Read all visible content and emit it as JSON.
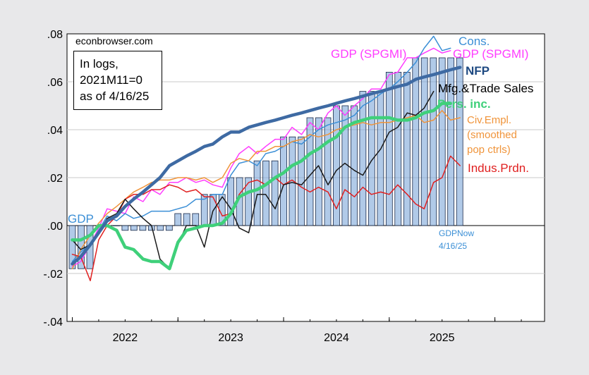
{
  "source": "econbrowser.com",
  "note": [
    "In logs,",
    "2021M11=0",
    "as of 4/16/25"
  ],
  "chart_data": {
    "type": "line",
    "yticks": [
      ".08",
      ".06",
      ".04",
      ".02",
      ".00",
      "-.02",
      "-.04"
    ],
    "ylim": [
      -0.04,
      0.08
    ],
    "xlim": [
      2021.45,
      2025.97
    ],
    "xticks": [
      "2022",
      "2023",
      "2024",
      "2025"
    ],
    "grid": true,
    "colors": {
      "gdp": "#7da7d9",
      "cons": "#3b8fd6",
      "gdp_spgmi": "#ff3cff",
      "nfp": "#3e6aa3",
      "mfg": "#1a1a1a",
      "pers": "#3fd07a",
      "civ": "#f0943a",
      "ip": "#e02020"
    },
    "series_labels": {
      "gdp": "GDP",
      "cons": "Cons.",
      "gdp_spgmi_left": "GDP (SPGMI)",
      "gdp_spgmi_right": "GDP (SPGMI)",
      "nfp": "NFP",
      "mfg": "Mfg.&Trade Sales",
      "pers": "Pers. inc.",
      "civ": [
        "Civ.Empl.",
        "(smoothed",
        "pop ctrls)"
      ],
      "ip": "Indus.Prdn.",
      "gdpnow": [
        "GDPNow",
        "4/16/25"
      ]
    },
    "gdp_bars": {
      "x": [
        2021.5,
        2021.583,
        2021.667,
        2021.75,
        2021.833,
        2021.917,
        2022.0,
        2022.083,
        2022.167,
        2022.25,
        2022.333,
        2022.417,
        2022.5,
        2022.583,
        2022.667,
        2022.75,
        2022.833,
        2022.917,
        2023.0,
        2023.083,
        2023.167,
        2023.25,
        2023.333,
        2023.417,
        2023.5,
        2023.583,
        2023.667,
        2023.75,
        2023.833,
        2023.917,
        2024.0,
        2024.083,
        2024.167,
        2024.25,
        2024.333,
        2024.417,
        2024.5,
        2024.583,
        2024.667,
        2024.75,
        2024.833,
        2024.917,
        2025.0,
        2025.083,
        2025.167
      ],
      "values": [
        -0.018,
        -0.018,
        -0.018,
        0.0,
        0.0,
        0.0,
        -0.002,
        -0.002,
        -0.002,
        -0.002,
        -0.002,
        -0.002,
        0.005,
        0.005,
        0.005,
        0.013,
        0.013,
        0.013,
        0.02,
        0.02,
        0.02,
        0.027,
        0.027,
        0.027,
        0.037,
        0.037,
        0.037,
        0.045,
        0.045,
        0.045,
        0.05,
        0.05,
        0.05,
        0.056,
        0.056,
        0.056,
        0.064,
        0.064,
        0.064,
        0.07,
        0.07,
        0.07,
        0.07,
        0.07,
        0.07
      ]
    },
    "series": [
      {
        "key": "gdp_spgmi",
        "width": 1.5,
        "x": [
          2021.5,
          2021.58,
          2021.67,
          2021.75,
          2021.83,
          2021.92,
          2022.0,
          2022.08,
          2022.17,
          2022.25,
          2022.33,
          2022.42,
          2022.5,
          2022.58,
          2022.67,
          2022.75,
          2022.83,
          2022.92,
          2023.0,
          2023.08,
          2023.17,
          2023.25,
          2023.33,
          2023.42,
          2023.5,
          2023.58,
          2023.67,
          2023.75,
          2023.83,
          2023.92,
          2024.0,
          2024.08,
          2024.17,
          2024.25,
          2024.33,
          2024.42,
          2024.5,
          2024.58,
          2024.67,
          2024.75,
          2024.83,
          2024.92,
          2025.0,
          2025.08
        ],
        "y": [
          -0.017,
          -0.015,
          -0.008,
          -0.001,
          0.007,
          0.006,
          0.005,
          0.012,
          0.01,
          0.015,
          0.013,
          0.018,
          0.018,
          0.02,
          0.018,
          0.019,
          0.017,
          0.016,
          0.024,
          0.03,
          0.033,
          0.03,
          0.033,
          0.036,
          0.036,
          0.041,
          0.038,
          0.043,
          0.04,
          0.047,
          0.05,
          0.046,
          0.05,
          0.053,
          0.057,
          0.057,
          0.063,
          0.064,
          0.07,
          0.07,
          0.072,
          0.074,
          0.072,
          0.073
        ]
      },
      {
        "key": "cons",
        "width": 1.5,
        "x": [
          2021.5,
          2021.58,
          2021.67,
          2021.75,
          2021.83,
          2021.92,
          2022.0,
          2022.08,
          2022.17,
          2022.25,
          2022.33,
          2022.42,
          2022.5,
          2022.58,
          2022.67,
          2022.75,
          2022.83,
          2022.92,
          2023.0,
          2023.08,
          2023.17,
          2023.25,
          2023.33,
          2023.42,
          2023.5,
          2023.58,
          2023.67,
          2023.75,
          2023.83,
          2023.92,
          2024.0,
          2024.08,
          2024.17,
          2024.25,
          2024.33,
          2024.42,
          2024.5,
          2024.58,
          2024.67,
          2024.75,
          2024.83,
          2024.92,
          2025.0,
          2025.08
        ],
        "y": [
          -0.015,
          -0.011,
          -0.008,
          -0.002,
          0.004,
          0.002,
          0.005,
          0.003,
          0.004,
          0.006,
          0.006,
          0.006,
          0.007,
          0.008,
          0.011,
          0.011,
          0.013,
          0.013,
          0.021,
          0.026,
          0.027,
          0.025,
          0.03,
          0.031,
          0.033,
          0.035,
          0.034,
          0.037,
          0.04,
          0.042,
          0.043,
          0.044,
          0.046,
          0.05,
          0.052,
          0.055,
          0.057,
          0.06,
          0.064,
          0.068,
          0.074,
          0.079,
          0.073,
          0.074
        ]
      },
      {
        "key": "civ",
        "width": 1.5,
        "x": [
          2021.5,
          2021.58,
          2021.67,
          2021.75,
          2021.83,
          2021.92,
          2022.0,
          2022.08,
          2022.17,
          2022.25,
          2022.33,
          2022.42,
          2022.5,
          2022.58,
          2022.67,
          2022.75,
          2022.83,
          2022.92,
          2023.0,
          2023.08,
          2023.17,
          2023.25,
          2023.33,
          2023.42,
          2023.5,
          2023.58,
          2023.67,
          2023.75,
          2023.83,
          2023.92,
          2024.0,
          2024.08,
          2024.17,
          2024.25,
          2024.33,
          2024.42,
          2024.5,
          2024.58,
          2024.67,
          2024.75,
          2024.83,
          2024.92,
          2025.0,
          2025.08,
          2025.17
        ],
        "y": [
          -0.018,
          -0.01,
          -0.004,
          0.001,
          0.005,
          0.008,
          0.011,
          0.014,
          0.016,
          0.018,
          0.019,
          0.019,
          0.02,
          0.02,
          0.019,
          0.02,
          0.018,
          0.02,
          0.026,
          0.028,
          0.027,
          0.031,
          0.031,
          0.033,
          0.033,
          0.035,
          0.036,
          0.038,
          0.037,
          0.038,
          0.04,
          0.041,
          0.042,
          0.043,
          0.042,
          0.043,
          0.043,
          0.044,
          0.045,
          0.046,
          0.043,
          0.044,
          0.048,
          0.044,
          0.045
        ]
      },
      {
        "key": "ip",
        "width": 1.5,
        "x": [
          2021.5,
          2021.58,
          2021.67,
          2021.75,
          2021.83,
          2021.92,
          2022.0,
          2022.08,
          2022.17,
          2022.25,
          2022.33,
          2022.42,
          2022.5,
          2022.58,
          2022.67,
          2022.75,
          2022.83,
          2022.92,
          2023.0,
          2023.08,
          2023.17,
          2023.25,
          2023.33,
          2023.42,
          2023.5,
          2023.58,
          2023.67,
          2023.75,
          2023.83,
          2023.92,
          2024.0,
          2024.08,
          2024.17,
          2024.25,
          2024.33,
          2024.42,
          2024.5,
          2024.58,
          2024.67,
          2024.75,
          2024.83,
          2024.92,
          2025.0,
          2025.08,
          2025.17
        ],
        "y": [
          -0.012,
          -0.013,
          -0.023,
          -0.006,
          0.0,
          0.004,
          0.011,
          0.013,
          0.013,
          0.015,
          0.015,
          0.017,
          0.016,
          0.014,
          0.015,
          0.012,
          0.012,
          0.004,
          0.005,
          0.013,
          0.018,
          0.019,
          0.017,
          0.02,
          0.017,
          0.019,
          0.016,
          0.014,
          0.016,
          0.014,
          0.007,
          0.015,
          0.012,
          0.016,
          0.013,
          0.014,
          0.013,
          0.017,
          0.013,
          0.009,
          0.007,
          0.018,
          0.02,
          0.029,
          0.025
        ]
      },
      {
        "key": "mfg",
        "width": 1.5,
        "x": [
          2021.5,
          2021.58,
          2021.67,
          2021.75,
          2021.83,
          2021.92,
          2022.0,
          2022.08,
          2022.17,
          2022.25,
          2022.33,
          2022.42,
          2022.5,
          2022.58,
          2022.67,
          2022.75,
          2022.83,
          2022.92,
          2023.0,
          2023.08,
          2023.17,
          2023.25,
          2023.33,
          2023.42,
          2023.5,
          2023.58,
          2023.67,
          2023.75,
          2023.83,
          2023.92,
          2024.0,
          2024.08,
          2024.17,
          2024.25,
          2024.33,
          2024.42,
          2024.5,
          2024.58,
          2024.67,
          2024.75,
          2024.83,
          2024.92
        ],
        "y": [
          -0.006,
          -0.01,
          -0.008,
          -0.003,
          0.003,
          0.005,
          0.011,
          0.007,
          0.003,
          0.0,
          -0.014,
          -0.018,
          -0.008,
          0.0,
          0.0,
          -0.009,
          0.006,
          0.012,
          0.007,
          -0.001,
          -0.003,
          0.013,
          0.013,
          0.007,
          0.017,
          0.018,
          0.017,
          0.021,
          0.025,
          0.017,
          0.023,
          0.026,
          0.023,
          0.021,
          0.027,
          0.032,
          0.039,
          0.041,
          0.047,
          0.046,
          0.049,
          0.056
        ]
      },
      {
        "key": "pers",
        "width": 4.5,
        "x": [
          2021.5,
          2021.58,
          2021.67,
          2021.75,
          2021.83,
          2021.92,
          2022.0,
          2022.08,
          2022.17,
          2022.25,
          2022.33,
          2022.42,
          2022.5,
          2022.58,
          2022.67,
          2022.75,
          2022.83,
          2022.92,
          2023.0,
          2023.08,
          2023.17,
          2023.25,
          2023.33,
          2023.42,
          2023.5,
          2023.58,
          2023.67,
          2023.75,
          2023.83,
          2023.92,
          2024.0,
          2024.08,
          2024.17,
          2024.25,
          2024.33,
          2024.42,
          2024.5,
          2024.58,
          2024.67,
          2024.75,
          2024.83,
          2024.92,
          2025.0,
          2025.08
        ],
        "y": [
          -0.006,
          -0.006,
          -0.004,
          0.0,
          0.0,
          -0.002,
          -0.009,
          -0.01,
          -0.014,
          -0.015,
          -0.015,
          -0.018,
          -0.007,
          -0.002,
          -0.001,
          0.0,
          0.0,
          0.001,
          0.005,
          0.012,
          0.014,
          0.015,
          0.017,
          0.02,
          0.022,
          0.025,
          0.027,
          0.03,
          0.032,
          0.035,
          0.037,
          0.041,
          0.043,
          0.044,
          0.045,
          0.045,
          0.045,
          0.044,
          0.044,
          0.045,
          0.047,
          0.048,
          0.051,
          0.051
        ]
      },
      {
        "key": "nfp",
        "width": 4.5,
        "x": [
          2021.5,
          2021.58,
          2021.67,
          2021.75,
          2021.83,
          2021.92,
          2022.0,
          2022.08,
          2022.17,
          2022.25,
          2022.33,
          2022.42,
          2022.5,
          2022.58,
          2022.67,
          2022.75,
          2022.83,
          2022.92,
          2023.0,
          2023.08,
          2023.17,
          2023.25,
          2023.33,
          2023.42,
          2023.5,
          2023.58,
          2023.67,
          2023.75,
          2023.83,
          2023.92,
          2024.0,
          2024.08,
          2024.17,
          2024.25,
          2024.33,
          2024.42,
          2024.5,
          2024.58,
          2024.67,
          2024.75,
          2024.83,
          2024.92,
          2025.0,
          2025.08,
          2025.17
        ],
        "y": [
          -0.016,
          -0.013,
          -0.008,
          -0.003,
          0.002,
          0.004,
          0.008,
          0.011,
          0.014,
          0.017,
          0.02,
          0.025,
          0.027,
          0.029,
          0.031,
          0.033,
          0.034,
          0.037,
          0.039,
          0.039,
          0.041,
          0.042,
          0.043,
          0.044,
          0.045,
          0.046,
          0.047,
          0.048,
          0.049,
          0.05,
          0.051,
          0.052,
          0.053,
          0.054,
          0.055,
          0.056,
          0.057,
          0.058,
          0.059,
          0.061,
          0.062,
          0.063,
          0.064,
          0.065,
          0.066
        ]
      }
    ]
  }
}
